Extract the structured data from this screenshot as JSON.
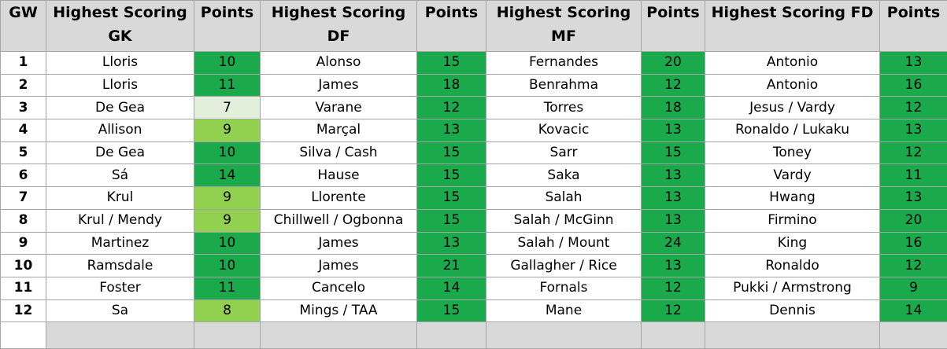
{
  "headers": [
    "GW",
    "Highest Scoring GK",
    "Points",
    "Highest Scoring DF",
    "Points",
    "Highest Scoring MF",
    "Points",
    "Highest Scoring FD",
    "Points"
  ],
  "rows": [
    {
      "gw": "1",
      "gk": "Lloris",
      "gk_pts": "10",
      "df": "Alonso",
      "df_pts": "15",
      "mf": "Fernandes",
      "mf_pts": "20",
      "fd": "Antonio",
      "fd_pts": "13"
    },
    {
      "gw": "2",
      "gk": "Lloris",
      "gk_pts": "11",
      "df": "James",
      "df_pts": "18",
      "mf": "Benrahma",
      "mf_pts": "12",
      "fd": "Antonio",
      "fd_pts": "16"
    },
    {
      "gw": "3",
      "gk": "De Gea",
      "gk_pts": "7",
      "df": "Varane",
      "df_pts": "12",
      "mf": "Torres",
      "mf_pts": "18",
      "fd": "Jesus / Vardy",
      "fd_pts": "12"
    },
    {
      "gw": "4",
      "gk": "Allison",
      "gk_pts": "9",
      "df": "Marçal",
      "df_pts": "13",
      "mf": "Kovacic",
      "mf_pts": "13",
      "fd": "Ronaldo / Lukaku",
      "fd_pts": "13"
    },
    {
      "gw": "5",
      "gk": "De Gea",
      "gk_pts": "10",
      "df": "Silva / Cash",
      "df_pts": "15",
      "mf": "Sarr",
      "mf_pts": "15",
      "fd": "Toney",
      "fd_pts": "12"
    },
    {
      "gw": "6",
      "gk": "Sá",
      "gk_pts": "14",
      "df": "Hause",
      "df_pts": "15",
      "mf": "Saka",
      "mf_pts": "13",
      "fd": "Vardy",
      "fd_pts": "11"
    },
    {
      "gw": "7",
      "gk": "Krul",
      "gk_pts": "9",
      "df": "Llorente",
      "df_pts": "15",
      "mf": "Salah",
      "mf_pts": "13",
      "fd": "Hwang",
      "fd_pts": "13"
    },
    {
      "gw": "8",
      "gk": "Krul / Mendy",
      "gk_pts": "9",
      "df": "Chillwell / Ogbonna",
      "df_pts": "15",
      "mf": "Salah / McGinn",
      "mf_pts": "13",
      "fd": "Firmino",
      "fd_pts": "20"
    },
    {
      "gw": "9",
      "gk": "Martinez",
      "gk_pts": "10",
      "df": "James",
      "df_pts": "13",
      "mf": "Salah / Mount",
      "mf_pts": "24",
      "fd": "King",
      "fd_pts": "16"
    },
    {
      "gw": "10",
      "gk": "Ramsdale",
      "gk_pts": "10",
      "df": "James",
      "df_pts": "21",
      "mf": "Gallagher / Rice",
      "mf_pts": "13",
      "fd": "Ronaldo",
      "fd_pts": "12"
    },
    {
      "gw": "11",
      "gk": "Foster",
      "gk_pts": "11",
      "df": "Cancelo",
      "df_pts": "14",
      "mf": "Fornals",
      "mf_pts": "12",
      "fd": "Pukki / Armstrong",
      "fd_pts": "9"
    },
    {
      "gw": "12",
      "gk": "Sa",
      "gk_pts": "8",
      "df": "Mings / TAA",
      "df_pts": "15",
      "mf": "Mane",
      "mf_pts": "12",
      "fd": "Dennis",
      "fd_pts": "14"
    }
  ],
  "colors": {
    "header_bg": "#d9d9d9",
    "points_high": "#1aaa4b",
    "points_mid": "#92d050",
    "points_low": "#e2efda"
  }
}
